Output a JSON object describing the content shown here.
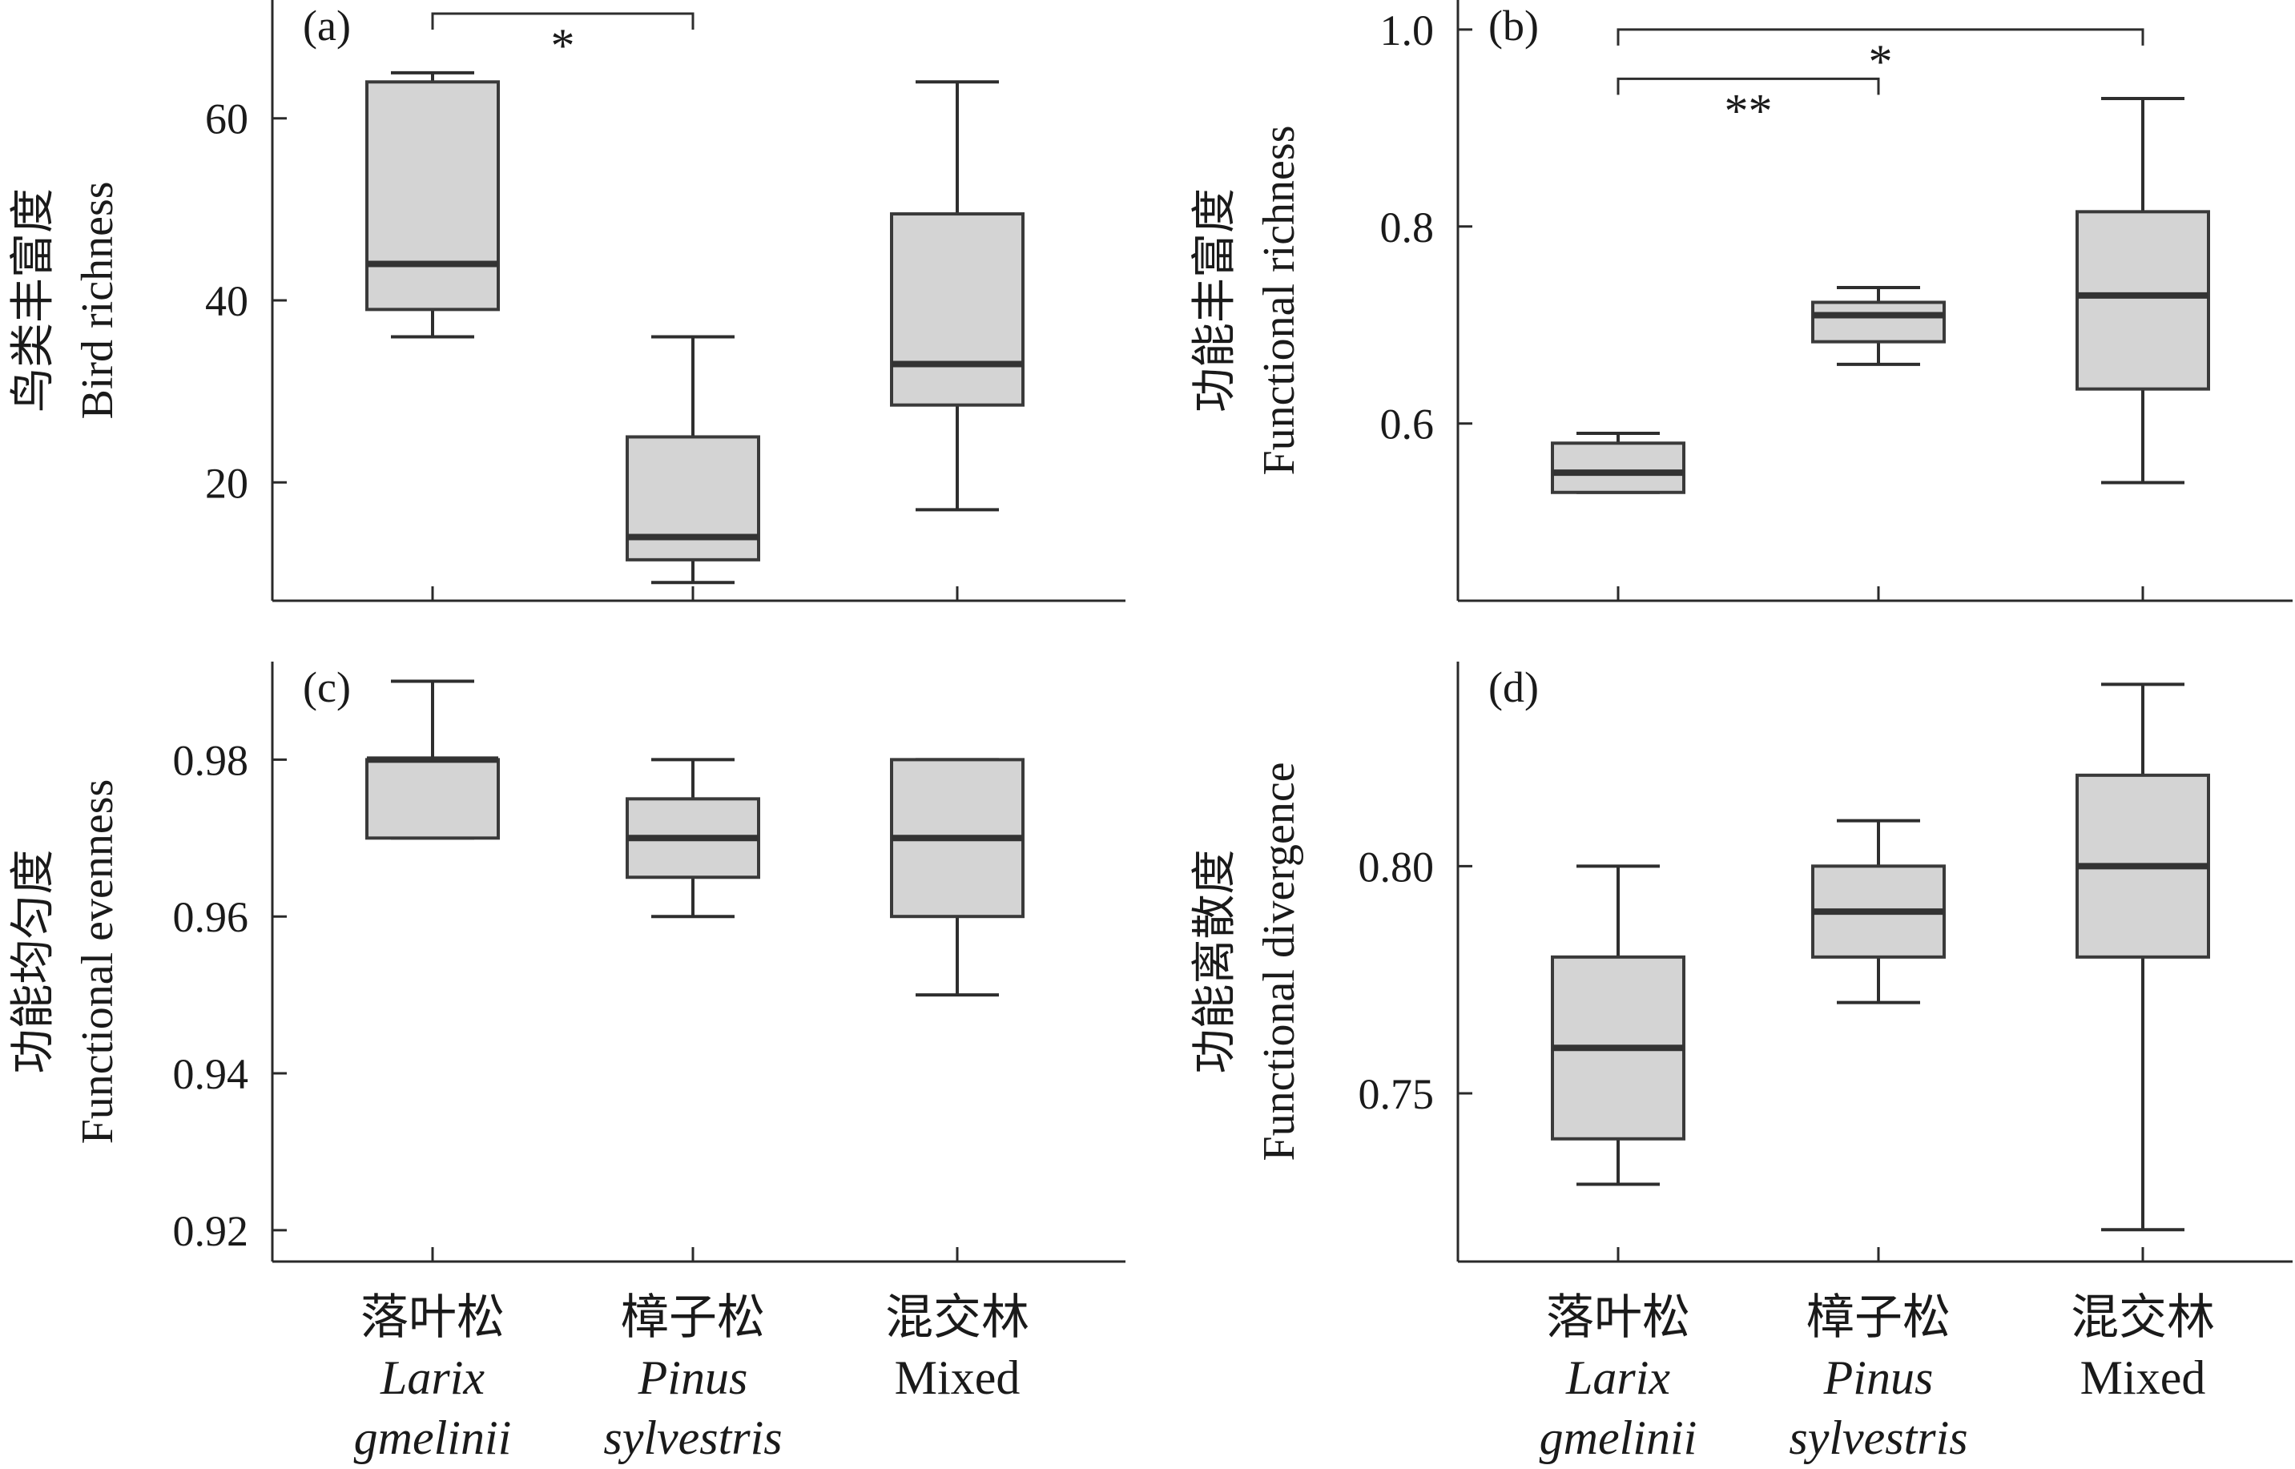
{
  "categories": [
    {
      "cn": "落叶松",
      "latin": [
        "Larix",
        "gmelinii"
      ],
      "italic": true
    },
    {
      "cn": "樟子松",
      "latin": [
        "Pinus",
        "sylvestris"
      ],
      "italic": true
    },
    {
      "cn": "混交林",
      "latin": [
        "Mixed"
      ],
      "italic": false
    }
  ],
  "chart_data": [
    {
      "type": "box",
      "panel": "(a)",
      "ylabel_cn": "鸟类丰富度",
      "ylabel_en": "Bird richness",
      "ylim": [
        7,
        73
      ],
      "yticks": [
        20,
        40,
        60
      ],
      "ytick_labels": [
        "20",
        "40",
        "60"
      ],
      "boxes": [
        {
          "min": 36,
          "q1": 39,
          "median": 44,
          "q3": 64,
          "max": 65
        },
        {
          "min": 9,
          "q1": 11.5,
          "median": 14,
          "q3": 25,
          "max": 36
        },
        {
          "min": 17,
          "q1": 28.5,
          "median": 33,
          "q3": 49.5,
          "max": 64
        }
      ],
      "significance": [
        {
          "from": 0,
          "to": 1,
          "label": "*",
          "level": 71.5
        }
      ]
    },
    {
      "type": "box",
      "panel": "(b)",
      "ylabel_cn": "功能丰富度",
      "ylabel_en": "Functional richness",
      "ylim": [
        0.42,
        1.03
      ],
      "yticks": [
        0.6,
        0.8,
        1.0
      ],
      "ytick_labels": [
        "0.6",
        "0.8",
        "1.0"
      ],
      "boxes": [
        {
          "min": 0.53,
          "q1": 0.53,
          "median": 0.55,
          "q3": 0.58,
          "max": 0.59
        },
        {
          "min": 0.66,
          "q1": 0.683,
          "median": 0.71,
          "q3": 0.723,
          "max": 0.738
        },
        {
          "min": 0.54,
          "q1": 0.635,
          "median": 0.73,
          "q3": 0.815,
          "max": 0.93
        }
      ],
      "significance": [
        {
          "from": 0,
          "to": 1,
          "label": "**",
          "level": 0.95
        },
        {
          "from": 0,
          "to": 2,
          "label": "*",
          "level": 1.0
        }
      ]
    },
    {
      "type": "box",
      "panel": "(c)",
      "ylabel_cn": "功能均匀度",
      "ylabel_en": "Functional evenness",
      "ylim": [
        0.916,
        0.9925
      ],
      "yticks": [
        0.92,
        0.94,
        0.96,
        0.98
      ],
      "ytick_labels": [
        "0.92",
        "0.94",
        "0.96",
        "0.98"
      ],
      "boxes": [
        {
          "min": 0.97,
          "q1": 0.97,
          "median": 0.98,
          "q3": 0.98,
          "max": 0.99
        },
        {
          "min": 0.96,
          "q1": 0.965,
          "median": 0.97,
          "q3": 0.975,
          "max": 0.98
        },
        {
          "min": 0.95,
          "q1": 0.96,
          "median": 0.97,
          "q3": 0.98,
          "max": 0.98
        }
      ],
      "significance": []
    },
    {
      "type": "box",
      "panel": "(d)",
      "ylabel_cn": "功能离散度",
      "ylabel_en": "Functional divergence",
      "ylim": [
        0.713,
        0.845
      ],
      "yticks": [
        0.75,
        0.8
      ],
      "ytick_labels": [
        "0.75",
        "0.80"
      ],
      "boxes": [
        {
          "min": 0.73,
          "q1": 0.74,
          "median": 0.76,
          "q3": 0.78,
          "max": 0.8
        },
        {
          "min": 0.77,
          "q1": 0.78,
          "median": 0.79,
          "q3": 0.8,
          "max": 0.81
        },
        {
          "min": 0.72,
          "q1": 0.78,
          "median": 0.8,
          "q3": 0.82,
          "max": 0.84
        }
      ],
      "significance": []
    }
  ]
}
